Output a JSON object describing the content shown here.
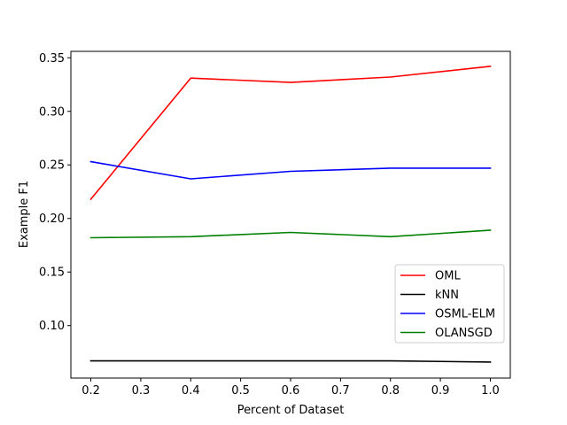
{
  "chart_data": {
    "type": "line",
    "title": "",
    "xlabel": "Percent of Dataset",
    "ylabel": "Example F1",
    "x": [
      0.2,
      0.4,
      0.6,
      0.8,
      1.0
    ],
    "xlim": [
      0.16,
      1.04
    ],
    "ylim": [
      0.051,
      0.356
    ],
    "xticks": [
      "0.2",
      "0.3",
      "0.4",
      "0.5",
      "0.6",
      "0.7",
      "0.8",
      "0.9",
      "1.0"
    ],
    "yticks": [
      "0.10",
      "0.15",
      "0.20",
      "0.25",
      "0.30",
      "0.35"
    ],
    "grid": false,
    "legend_position": "lower right",
    "series": [
      {
        "name": "OML",
        "color": "#ff0000",
        "values": [
          0.218,
          0.331,
          0.327,
          0.332,
          0.342
        ]
      },
      {
        "name": "kNN",
        "color": "#000000",
        "values": [
          0.067,
          0.067,
          0.067,
          0.067,
          0.066
        ]
      },
      {
        "name": "OSML-ELM",
        "color": "#0000ff",
        "values": [
          0.253,
          0.237,
          0.244,
          0.247,
          0.247
        ]
      },
      {
        "name": "OLANSGD",
        "color": "#008000",
        "values": [
          0.182,
          0.183,
          0.187,
          0.183,
          0.189
        ]
      }
    ]
  }
}
